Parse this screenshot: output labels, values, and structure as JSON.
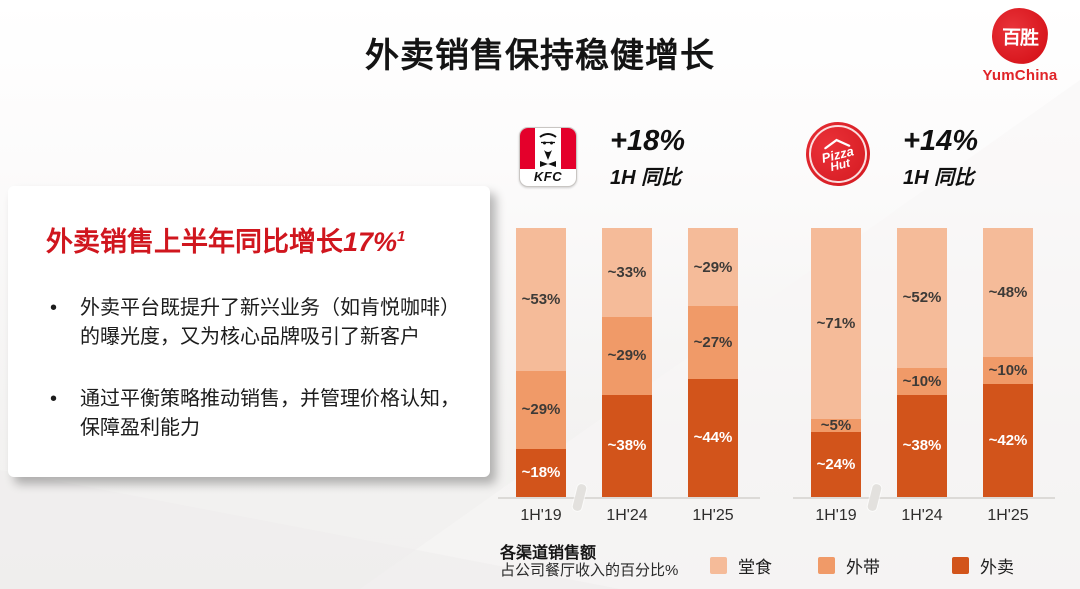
{
  "slide": {
    "title": "外卖销售保持稳健增长"
  },
  "yum_logo": {
    "seal_text": "百胜",
    "brand_name": "YumChina"
  },
  "panel": {
    "heading_prefix": "外卖销售上半年同比增长",
    "heading_value": "17%",
    "heading_footnote": "1",
    "bullets": [
      "外卖平台既提升了新兴业务（如肯悦咖啡）的曝光度，又为核心品牌吸引了新客户",
      "通过平衡策略推动销售，并管理价格认知，保障盈利能力"
    ]
  },
  "brands": [
    {
      "name": "KFC",
      "growth": "+18%",
      "period": "1H 同比"
    },
    {
      "name": "Pizza Hut",
      "logo_line1": "Pizza",
      "logo_line2": "Hut",
      "growth": "+14%",
      "period": "1H 同比"
    }
  ],
  "chart_data": [
    {
      "type": "bar",
      "stacked": true,
      "percent": true,
      "title": "KFC",
      "categories": [
        "1H'19",
        "1H'24",
        "1H'25"
      ],
      "series": [
        {
          "key": "dine-in",
          "name": "堂食",
          "color": "#F5BB99",
          "label_color": "#3d3a37",
          "values": [
            53,
            33,
            29
          ],
          "labels": [
            "~53%",
            "~33%",
            "~29%"
          ]
        },
        {
          "key": "takeaway",
          "name": "外带",
          "color": "#F09A68",
          "label_color": "#3d3a37",
          "values": [
            29,
            29,
            27
          ],
          "labels": [
            "~29%",
            "~29%",
            "~27%"
          ]
        },
        {
          "key": "delivery",
          "name": "外卖",
          "color": "#D2541B",
          "label_color": "#ffffff",
          "values": [
            18,
            38,
            44
          ],
          "labels": [
            "~18%",
            "~38%",
            "~44%"
          ]
        }
      ],
      "ylim": [
        0,
        100
      ],
      "axis_break": true,
      "grid": false,
      "legend_position": "bottom"
    },
    {
      "type": "bar",
      "stacked": true,
      "percent": true,
      "title": "Pizza Hut",
      "categories": [
        "1H'19",
        "1H'24",
        "1H'25"
      ],
      "series": [
        {
          "key": "dine-in",
          "name": "堂食",
          "color": "#F5BB99",
          "label_color": "#3d3a37",
          "values": [
            71,
            52,
            48
          ],
          "labels": [
            "~71%",
            "~52%",
            "~48%"
          ]
        },
        {
          "key": "takeaway",
          "name": "外带",
          "color": "#F09A68",
          "label_color": "#3d3a37",
          "values": [
            5,
            10,
            10
          ],
          "labels": [
            "~5%",
            "~10%",
            "~10%"
          ]
        },
        {
          "key": "delivery",
          "name": "外卖",
          "color": "#D2541B",
          "label_color": "#ffffff",
          "values": [
            24,
            38,
            42
          ],
          "labels": [
            "~24%",
            "~38%",
            "~42%"
          ]
        }
      ],
      "ylim": [
        0,
        100
      ],
      "axis_break": true,
      "grid": false,
      "legend_position": "bottom"
    }
  ],
  "footer": {
    "title": "各渠道销售额",
    "subtitle": "占公司餐厅收入的百分比%"
  },
  "legend": [
    {
      "label": "堂食",
      "color": "#F5BB99"
    },
    {
      "label": "外带",
      "color": "#F09A68"
    },
    {
      "label": "外卖",
      "color": "#D2541B"
    }
  ]
}
